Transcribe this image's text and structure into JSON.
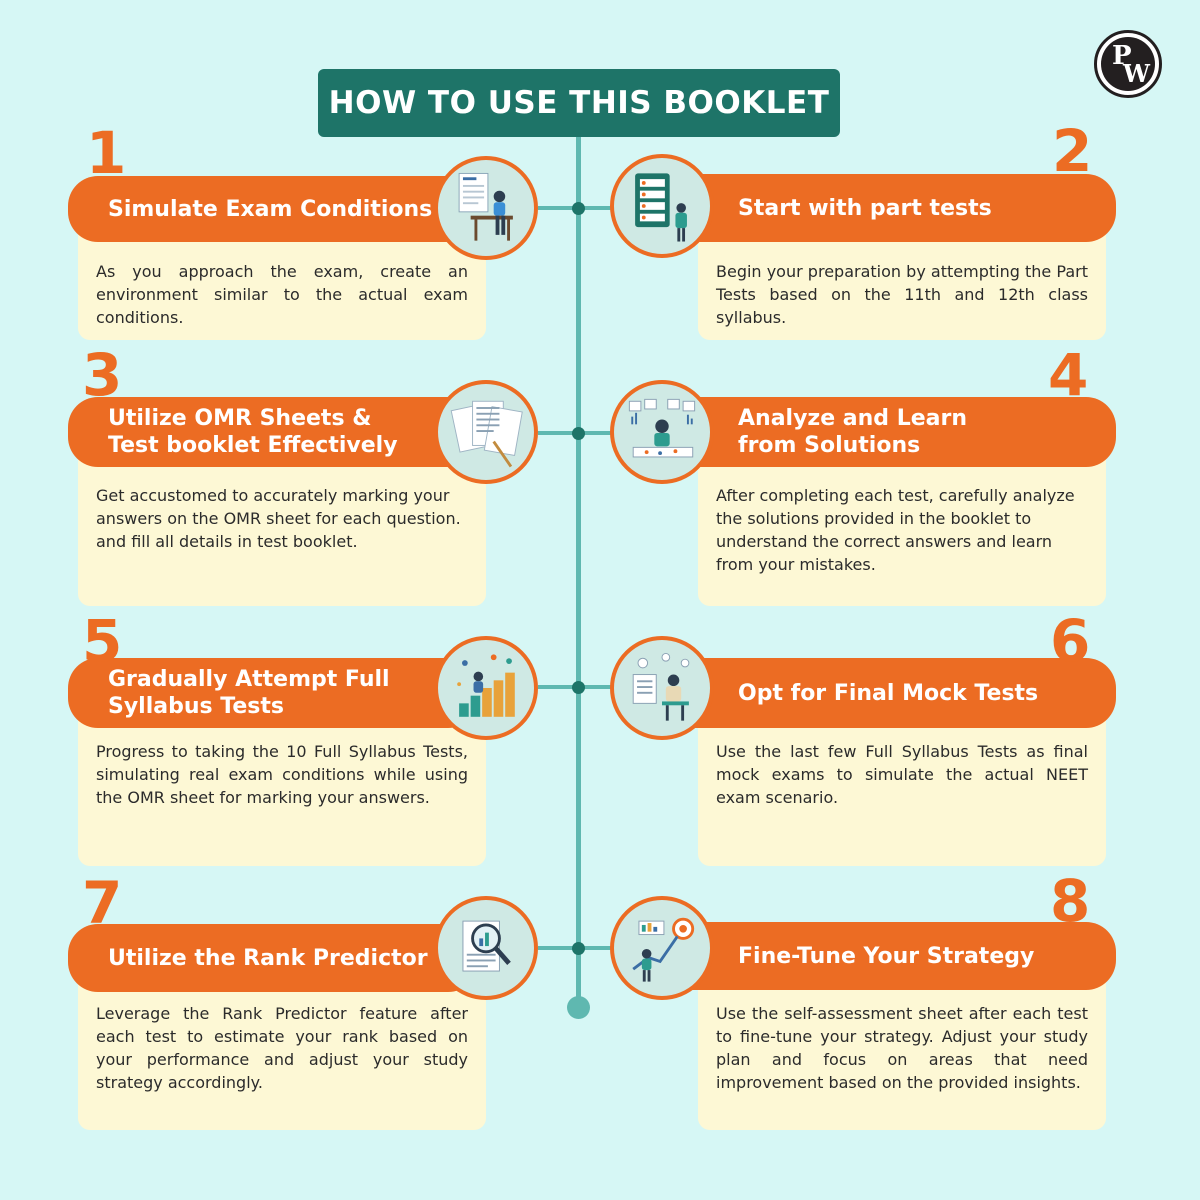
{
  "title": "HOW TO USE THIS BOOKLET",
  "logo": {
    "letter_p": "P",
    "letter_w": "W"
  },
  "colors": {
    "background": "#d6f7f5",
    "title_bg": "#1e7468",
    "accent": "#ec6c23",
    "card": "#fdf8d5",
    "spine": "#5fb8b0"
  },
  "steps": [
    {
      "number": "1",
      "title": "Simulate Exam Conditions",
      "icon": "exam-desk-icon",
      "description": "As you approach the exam, create an environment similar to the actual exam conditions."
    },
    {
      "number": "2",
      "title": "Start with part tests",
      "icon": "checklist-icon",
      "description": "Begin your preparation by attempting the Part Tests based on the 11th and 12th class syllabus."
    },
    {
      "number": "3",
      "title_line1": "Utilize OMR Sheets &",
      "title_line2": "Test booklet Effectively",
      "icon": "omr-sheets-icon",
      "description": "Get accustomed to accurately marking your answers on the OMR sheet for each question. and fill all details in test booklet."
    },
    {
      "number": "4",
      "title_line1": "Analyze and Learn",
      "title_line2": "from Solutions",
      "icon": "analysis-icon",
      "description": "After completing each test, carefully analyze the solutions provided in the booklet to understand the correct answers and learn from your mistakes."
    },
    {
      "number": "5",
      "title_line1": "Gradually Attempt Full",
      "title_line2": "Syllabus Tests",
      "icon": "growth-steps-icon",
      "description": "Progress to taking the 10 Full Syllabus Tests, simulating real exam conditions while using the OMR sheet for marking your answers."
    },
    {
      "number": "6",
      "title": "Opt for Final Mock Tests",
      "icon": "mock-test-icon",
      "description": "Use the last few Full Syllabus Tests as final mock exams to simulate the actual NEET exam scenario."
    },
    {
      "number": "7",
      "title": "Utilize the Rank Predictor",
      "icon": "magnifier-chart-icon",
      "description": "Leverage the Rank Predictor feature after each test to estimate your rank based on your performance and adjust your study strategy accordingly."
    },
    {
      "number": "8",
      "title": "Fine-Tune Your Strategy",
      "icon": "target-strategy-icon",
      "description": "Use the self-assessment sheet after each test to fine-tune your strategy. Adjust your study plan and focus on areas that need improvement based on the provided insights."
    }
  ]
}
